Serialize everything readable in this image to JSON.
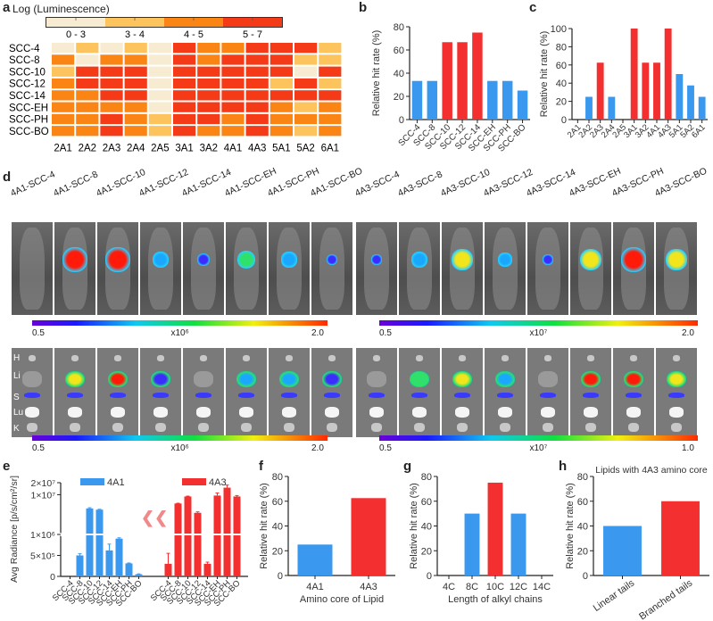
{
  "panels": {
    "a": "a",
    "b": "b",
    "c": "c",
    "d": "d",
    "e": "e",
    "f": "f",
    "g": "g",
    "h": "h"
  },
  "chart_data": [
    {
      "id": "a",
      "type": "heatmap",
      "title": "Log (Luminescence)",
      "legend": {
        "bins": [
          "0 - 3",
          "3 - 4",
          "4 - 5",
          "5 - 7"
        ],
        "colors": [
          "#f7ecd2",
          "#fdc45e",
          "#fb8514",
          "#f43a16"
        ]
      },
      "rows": [
        "SCC-4",
        "SCC-8",
        "SCC-10",
        "SCC-12",
        "SCC-14",
        "SCC-EH",
        "SCC-PH",
        "SCC-BO"
      ],
      "columns": [
        "2A1",
        "2A2",
        "2A3",
        "2A4",
        "2A5",
        "3A1",
        "3A2",
        "4A1",
        "4A3",
        "5A1",
        "5A2",
        "6A1"
      ],
      "bin_index_matrix": [
        [
          0,
          1,
          0,
          1,
          0,
          3,
          2,
          2,
          3,
          3,
          3,
          1
        ],
        [
          2,
          0,
          2,
          2,
          0,
          3,
          2,
          3,
          3,
          3,
          1,
          1
        ],
        [
          1,
          3,
          3,
          3,
          0,
          3,
          3,
          3,
          3,
          3,
          0,
          3
        ],
        [
          2,
          3,
          3,
          3,
          0,
          3,
          3,
          3,
          3,
          1,
          3,
          1
        ],
        [
          2,
          2,
          3,
          3,
          0,
          3,
          3,
          3,
          3,
          3,
          3,
          3
        ],
        [
          2,
          2,
          2,
          2,
          0,
          3,
          3,
          3,
          3,
          2,
          1,
          2
        ],
        [
          2,
          2,
          3,
          2,
          1,
          3,
          3,
          2,
          3,
          2,
          2,
          2
        ],
        [
          2,
          2,
          3,
          2,
          1,
          3,
          2,
          2,
          3,
          2,
          1,
          2
        ]
      ]
    },
    {
      "id": "b",
      "type": "bar",
      "ylabel": "Relative hit rate (%)",
      "ylim": [
        0,
        80
      ],
      "yticks": [
        0,
        20,
        40,
        60,
        80
      ],
      "categories": [
        "SCC-4",
        "SCC-8",
        "SCC-10",
        "SCC-12",
        "SCC-14",
        "SCC-EH",
        "SCC-PH",
        "SCC-BO"
      ],
      "values": [
        33.3,
        33.3,
        66.7,
        66.7,
        75,
        33.3,
        33.3,
        25
      ],
      "highlight": [
        false,
        false,
        true,
        true,
        true,
        false,
        false,
        false
      ]
    },
    {
      "id": "c",
      "type": "bar",
      "ylabel": "Relative hit rate (%)",
      "ylim": [
        0,
        100
      ],
      "yticks": [
        0,
        20,
        40,
        60,
        80,
        100
      ],
      "categories": [
        "2A1",
        "2A2",
        "2A3",
        "2A4",
        "2A5",
        "3A1",
        "3A2",
        "4A1",
        "4A3",
        "5A1",
        "5A2",
        "6A1"
      ],
      "values": [
        0,
        25,
        62.5,
        25,
        0,
        100,
        62.5,
        62.5,
        100,
        50,
        37.5,
        25
      ],
      "highlight": [
        false,
        false,
        true,
        false,
        false,
        true,
        true,
        true,
        true,
        false,
        false,
        false
      ]
    },
    {
      "id": "e",
      "type": "bar",
      "ylabel": "Avg Radiance [p/s/cm²/sr]",
      "yticks": [
        "0",
        "5×10⁵",
        "1×10⁶",
        "1×10⁷",
        "2×10⁷"
      ],
      "categories": [
        "SCC-4",
        "SCC-8",
        "SCC-10",
        "SCC-12",
        "SCC-14",
        "SCC-EH",
        "SCC-PH",
        "SCC-BO"
      ],
      "series": [
        {
          "name": "4A1",
          "values": [
            0,
            500000,
            4500000,
            4200000,
            620000,
            900000,
            310000,
            50000
          ],
          "errors": [
            0,
            40000,
            200000,
            100000,
            150000,
            20000,
            10000,
            10000
          ]
        },
        {
          "name": "4A3",
          "values": [
            300000,
            6000000,
            9000000,
            3500000,
            300000,
            9500000,
            15000000,
            9000000
          ],
          "errors": [
            250000,
            100000,
            200000,
            200000,
            40000,
            1500000,
            2500000,
            500000
          ]
        }
      ],
      "break_symbol": "❮❮"
    },
    {
      "id": "f",
      "type": "bar",
      "ylabel": "Relative hit rate (%)",
      "xlabel": "Amino core of Lipid",
      "ylim": [
        0,
        80
      ],
      "yticks": [
        0,
        20,
        40,
        60,
        80
      ],
      "categories": [
        "4A1",
        "4A3"
      ],
      "values": [
        25,
        62.5
      ],
      "highlight": [
        false,
        true
      ]
    },
    {
      "id": "g",
      "type": "bar",
      "ylabel": "Relative hit rate (%)",
      "xlabel": "Length of alkyl chains",
      "ylim": [
        0,
        80
      ],
      "yticks": [
        0,
        20,
        40,
        60,
        80
      ],
      "categories": [
        "4C",
        "8C",
        "10C",
        "12C",
        "14C"
      ],
      "values": [
        0,
        50,
        75,
        50,
        0
      ],
      "highlight": [
        false,
        false,
        true,
        false,
        false
      ]
    },
    {
      "id": "h",
      "type": "bar",
      "title": "Lipids with 4A3 amino core",
      "ylabel": "Relative hit rate (%)",
      "ylim": [
        0,
        80
      ],
      "yticks": [
        0,
        20,
        40,
        60,
        80
      ],
      "categories": [
        "Linear tails",
        "Branched tails"
      ],
      "values": [
        40,
        60
      ],
      "highlight": [
        false,
        true
      ]
    }
  ],
  "imaging": {
    "labels_4A1": [
      "4A1-SCC-4",
      "4A1-SCC-8",
      "4A1-SCC-10",
      "4A1-SCC-12",
      "4A1-SCC-14",
      "4A1-SCC-EH",
      "4A1-SCC-PH",
      "4A1-SCC-BO"
    ],
    "labels_4A3": [
      "4A3-SCC-4",
      "4A3-SCC-8",
      "4A3-SCC-10",
      "4A3-SCC-12",
      "4A3-SCC-14",
      "4A3-SCC-EH",
      "4A3-SCC-PH",
      "4A3-SCC-BO"
    ],
    "organ_labels": [
      "H",
      "Li",
      "S",
      "Lu",
      "K"
    ],
    "colorbars": {
      "whole_body_4A1": {
        "min": "0.5",
        "max": "2.0",
        "scale": "x10⁶"
      },
      "whole_body_4A3": {
        "min": "0.5",
        "max": "2.0",
        "scale": "x10⁷"
      },
      "organs_4A1": {
        "min": "0.5",
        "max": "2.0",
        "scale": "x10⁶"
      },
      "organs_4A3": {
        "min": "0.5",
        "max": "1.0",
        "scale": "x10⁷"
      }
    },
    "body_signal_4A1": [
      0,
      1,
      1,
      0.45,
      0.25,
      0.6,
      0.4,
      0.15
    ],
    "body_signal_4A3": [
      0.1,
      0.45,
      0.75,
      0.3,
      0.1,
      0.8,
      1,
      0.75
    ],
    "liver_signal_4A1": [
      0,
      0.7,
      0.9,
      0.2,
      0,
      0.4,
      0.35,
      0.15
    ],
    "liver_signal_4A3": [
      0,
      0.6,
      0.8,
      0.3,
      0,
      0.85,
      0.9,
      0.7
    ]
  },
  "colors": {
    "blue": "#3a99ef",
    "red": "#f42f2f",
    "axis": "#222222"
  }
}
